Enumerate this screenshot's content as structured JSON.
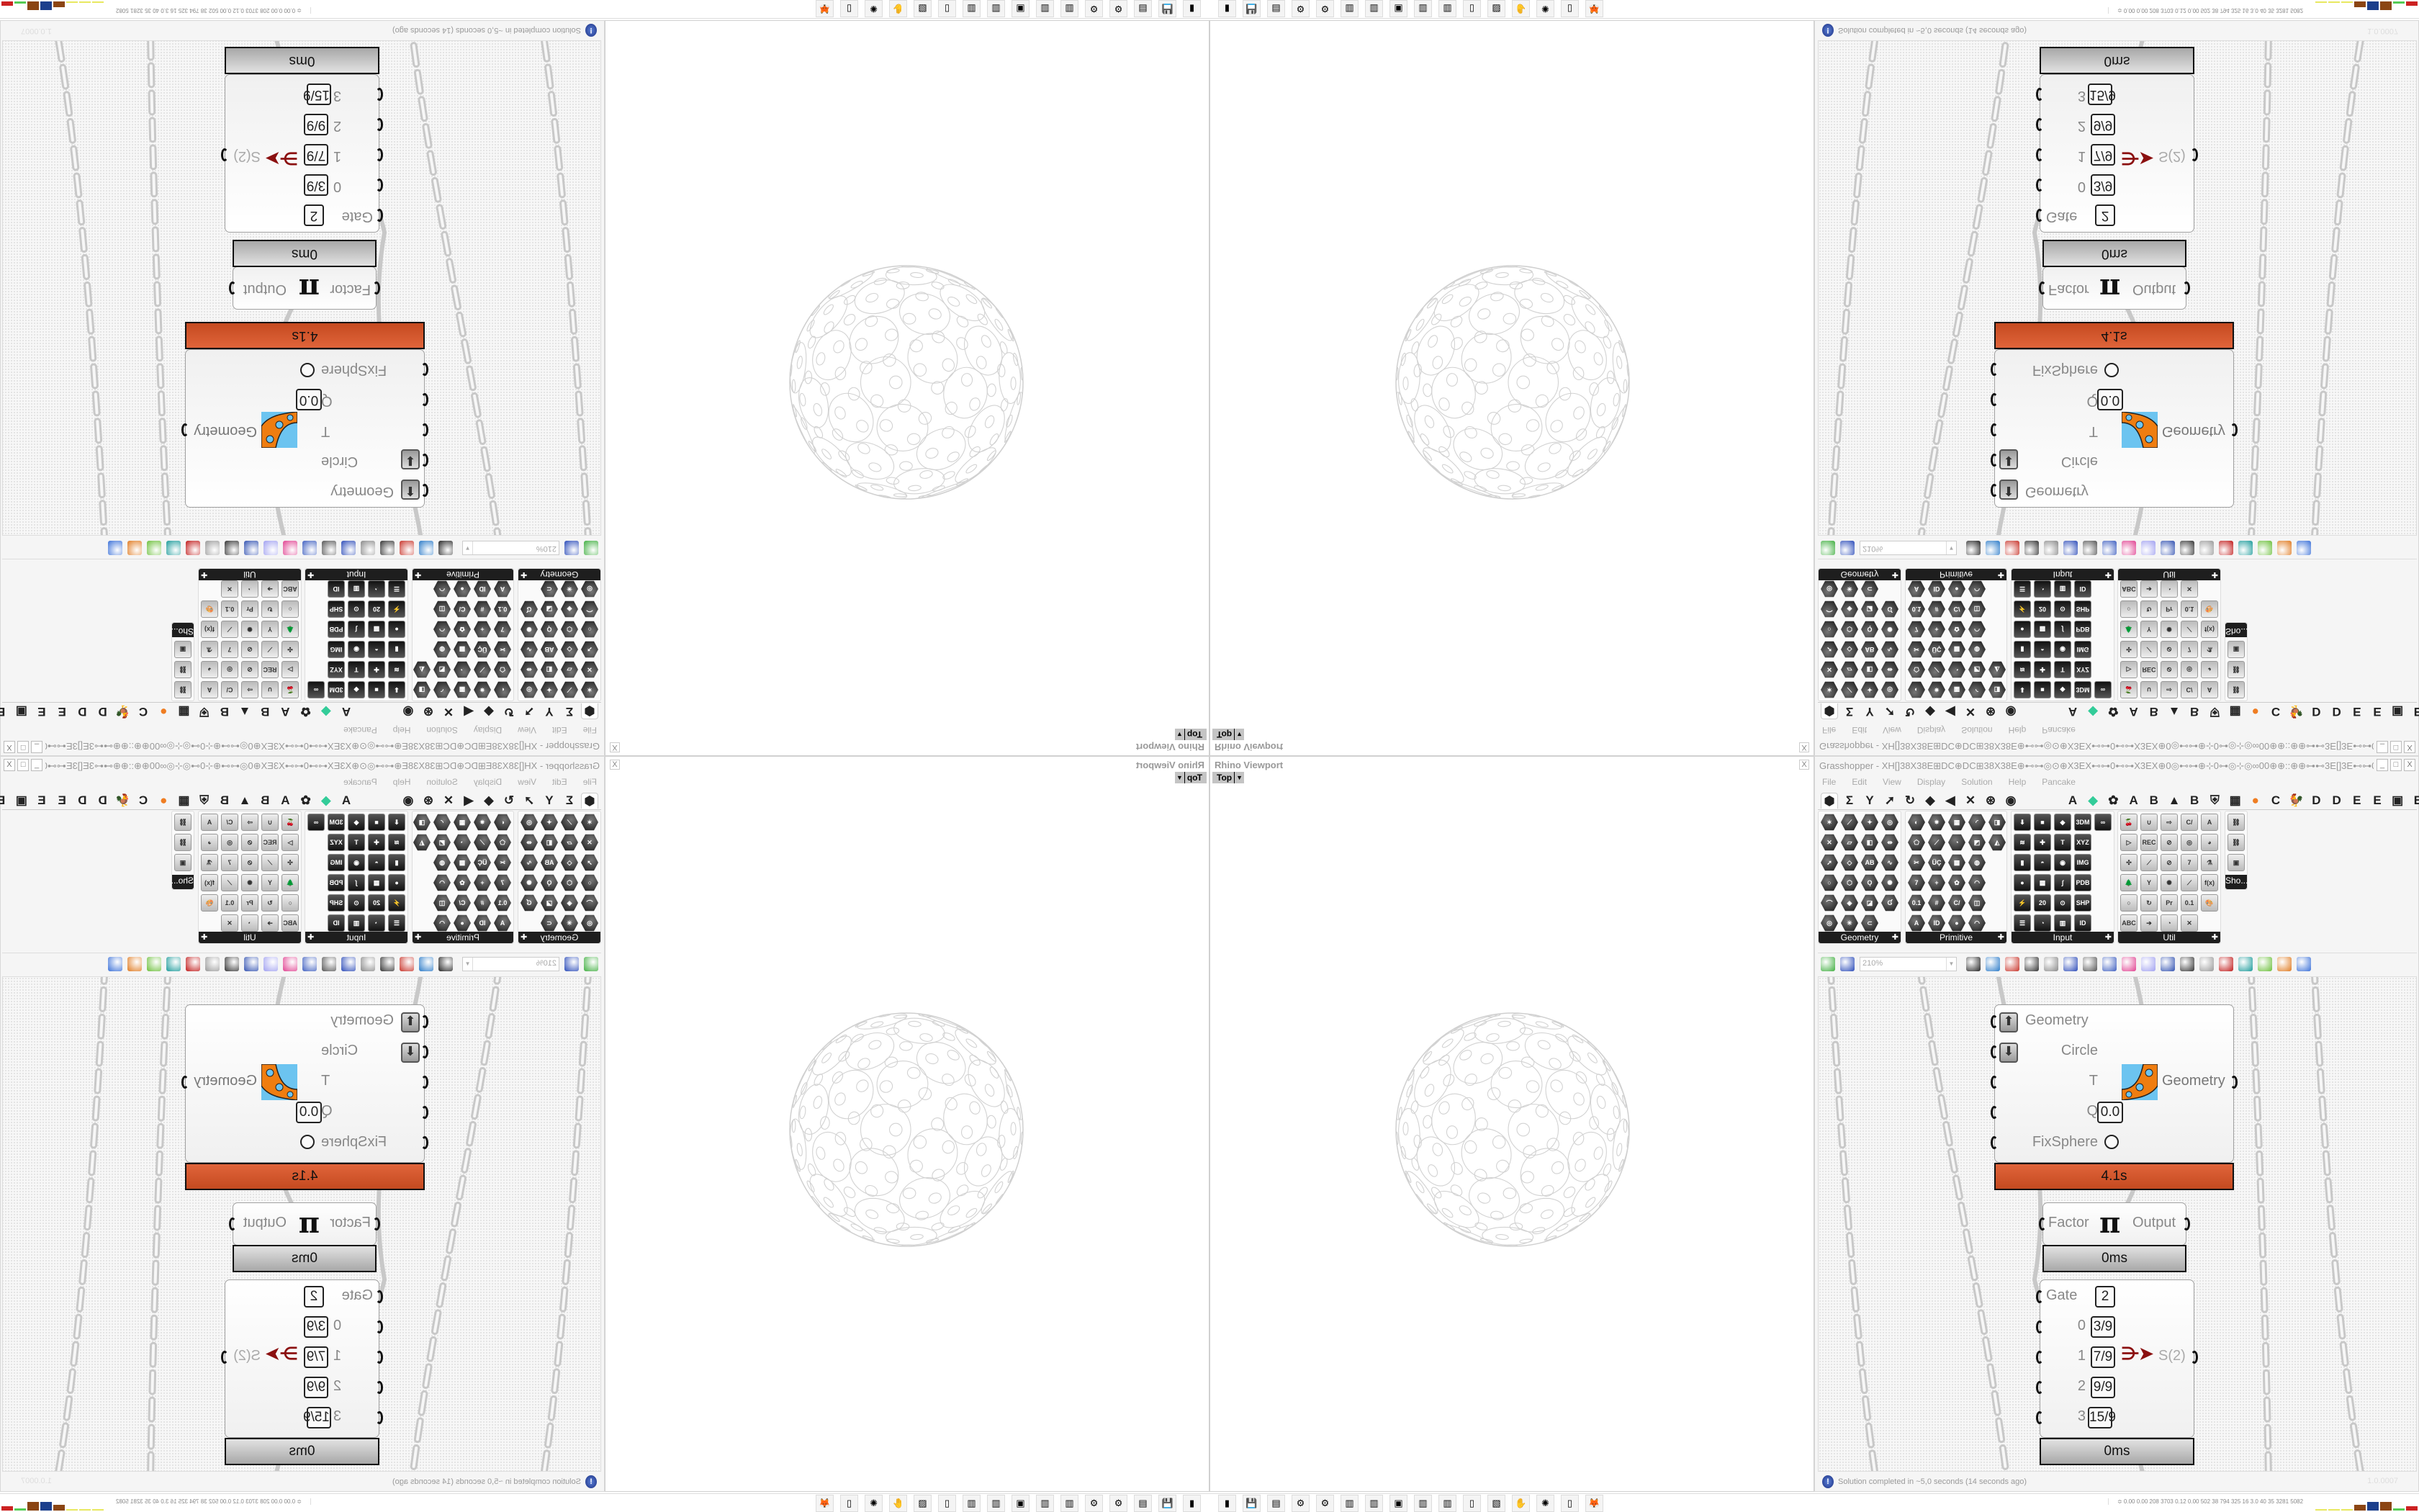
{
  "rhino": {
    "title": "Rhino Viewport",
    "close_label": "X",
    "view_label": "Top"
  },
  "gh": {
    "title": "Grasshopper - XH[]38X38E⊞DC⊕DC⊞38X38E⊕⊷⊶◎⊙⊕X3EX⊷⊶0⊷⊶X3EX⊕0◎⊷⊶⊕⊹0⊶◎⊹◎∞00⊕⊕::⊕⊕⊶⊷3E[]3E⊷⊶0⊕⊕::⊕⊕⊹0∞◎⊹◎∞00⊕⊕⊷⊶◎⊙⊕X3EX⊷⊶0⊷⊶...",
    "window_buttons": [
      "_",
      "□",
      "X"
    ],
    "menu": [
      "File",
      "Edit",
      "View",
      "Display",
      "Solution",
      "Help",
      "Pancake"
    ],
    "tabs_left": [
      "⬢",
      "Σ",
      "Y",
      "➚",
      "↻",
      "◆",
      "◀",
      "✕",
      "⊛",
      "◉"
    ],
    "tabs_right": [
      "A",
      "◆",
      "✿",
      "A",
      "B",
      "▲",
      "B",
      "⛨",
      "▦",
      "●",
      "C",
      "🐓",
      "D",
      "D",
      "E",
      "E",
      "▣",
      "E"
    ],
    "palette": [
      {
        "label": "Geometry",
        "style": "hex",
        "icons": [
          "✶",
          "⟋",
          "✦",
          "◎",
          "✕",
          "▱",
          "◧",
          "⇹",
          "➚",
          "◇",
          "AB",
          "∿",
          "○",
          "⬡",
          "Ǫ",
          "✺",
          "⌒",
          "◈",
          "◪",
          "Ɠ",
          "◎",
          "✳",
          "⊂"
        ]
      },
      {
        "label": "Primitive",
        "style": "hex",
        "icons": [
          "◐",
          "✷",
          "▦",
          "◜",
          "◨",
          "⬠",
          "⟋",
          "◔",
          "◩",
          "◭",
          "✂",
          "ÜÇ",
          "▩",
          "◍",
          "",
          "7",
          "+",
          "✿",
          "◠",
          "",
          "0.1",
          "#",
          "C/",
          "◫",
          "",
          "A",
          "ID",
          "●",
          "◠"
        ]
      },
      {
        "label": "Input",
        "style": "sq",
        "icons": [
          "⬇",
          "■",
          "◆",
          "3DM",
          "∞",
          "≋",
          "✚",
          "T",
          "XYZ",
          "",
          "▮",
          "◓",
          "◉",
          "IMG",
          "",
          "●",
          "▩",
          "∫",
          "PDB",
          "",
          "⚡",
          "20",
          "⊙",
          "SHP",
          "",
          "☰",
          "◔",
          "▥",
          "ID"
        ]
      },
      {
        "label": "Util",
        "style": "ut",
        "icons": [
          "🍒",
          "∪",
          "⇨",
          "C/",
          "A",
          "▷",
          "REC",
          "⊘",
          "◎",
          "◕",
          "✣",
          "⟋",
          "⊘",
          "7",
          "⚗",
          "🌲",
          "Y",
          "✺",
          "⟋",
          "f(x)",
          "○",
          "↻",
          "Pr",
          "0.1",
          "🎨",
          "ABC",
          "➔",
          "◔",
          "✕"
        ]
      },
      {
        "label": "Sho...",
        "style": "ut",
        "icons": [
          "⛓",
          "⛓",
          "▣"
        ]
      }
    ],
    "toolbar": {
      "zoom_value": "210%",
      "icons": [
        "new-file",
        "save",
        "zoom-extents",
        "preview",
        "sketch",
        "bake",
        "info",
        "gha",
        "canvas",
        "search",
        "help-box",
        "bulb",
        "wire",
        "sphere-a",
        "sphere-b",
        "gem",
        "shape-a",
        "shape-b",
        "shape-c",
        "sphere-blue"
      ]
    },
    "components": {
      "main": {
        "inputs": [
          "Geometry",
          "Circle",
          "T",
          "Q",
          "FixSphere"
        ],
        "q_value": "0.0",
        "output": "Geometry",
        "time": "4.1s"
      },
      "pi": {
        "input": "Factor",
        "symbol": "π",
        "output": "Output",
        "time": "0ms"
      },
      "gate": {
        "inputs": [
          "Gate",
          "0",
          "1",
          "2",
          "3"
        ],
        "values": [
          "2",
          "3/9",
          "7/9",
          "9/9",
          "15/9"
        ],
        "output": "S(2)",
        "time": "0ms"
      }
    },
    "status": {
      "icon": "info-icon",
      "message": "Solution completed in ~5,0 seconds (14 seconds ago)",
      "version": "1.0.0007"
    }
  },
  "taskbar": {
    "icons": [
      "▮",
      "💾",
      "▤",
      "⚙",
      "⚙",
      "▥",
      "▥",
      "▣",
      "▥",
      "▥",
      "▯",
      "▧",
      "✋",
      "✺",
      "▯",
      "🦊"
    ],
    "stats": "≎  0.00 0.00 208 3703 0.12 0.00 502  38  794  325  16  3.0  40  35  3281 5082",
    "bar_colors": [
      "#e8e860",
      "#e8e860",
      "#e8e860",
      "#8b4513",
      "#1c3f8c",
      "#8b4513",
      "#55cc55",
      "#cc2222"
    ]
  }
}
